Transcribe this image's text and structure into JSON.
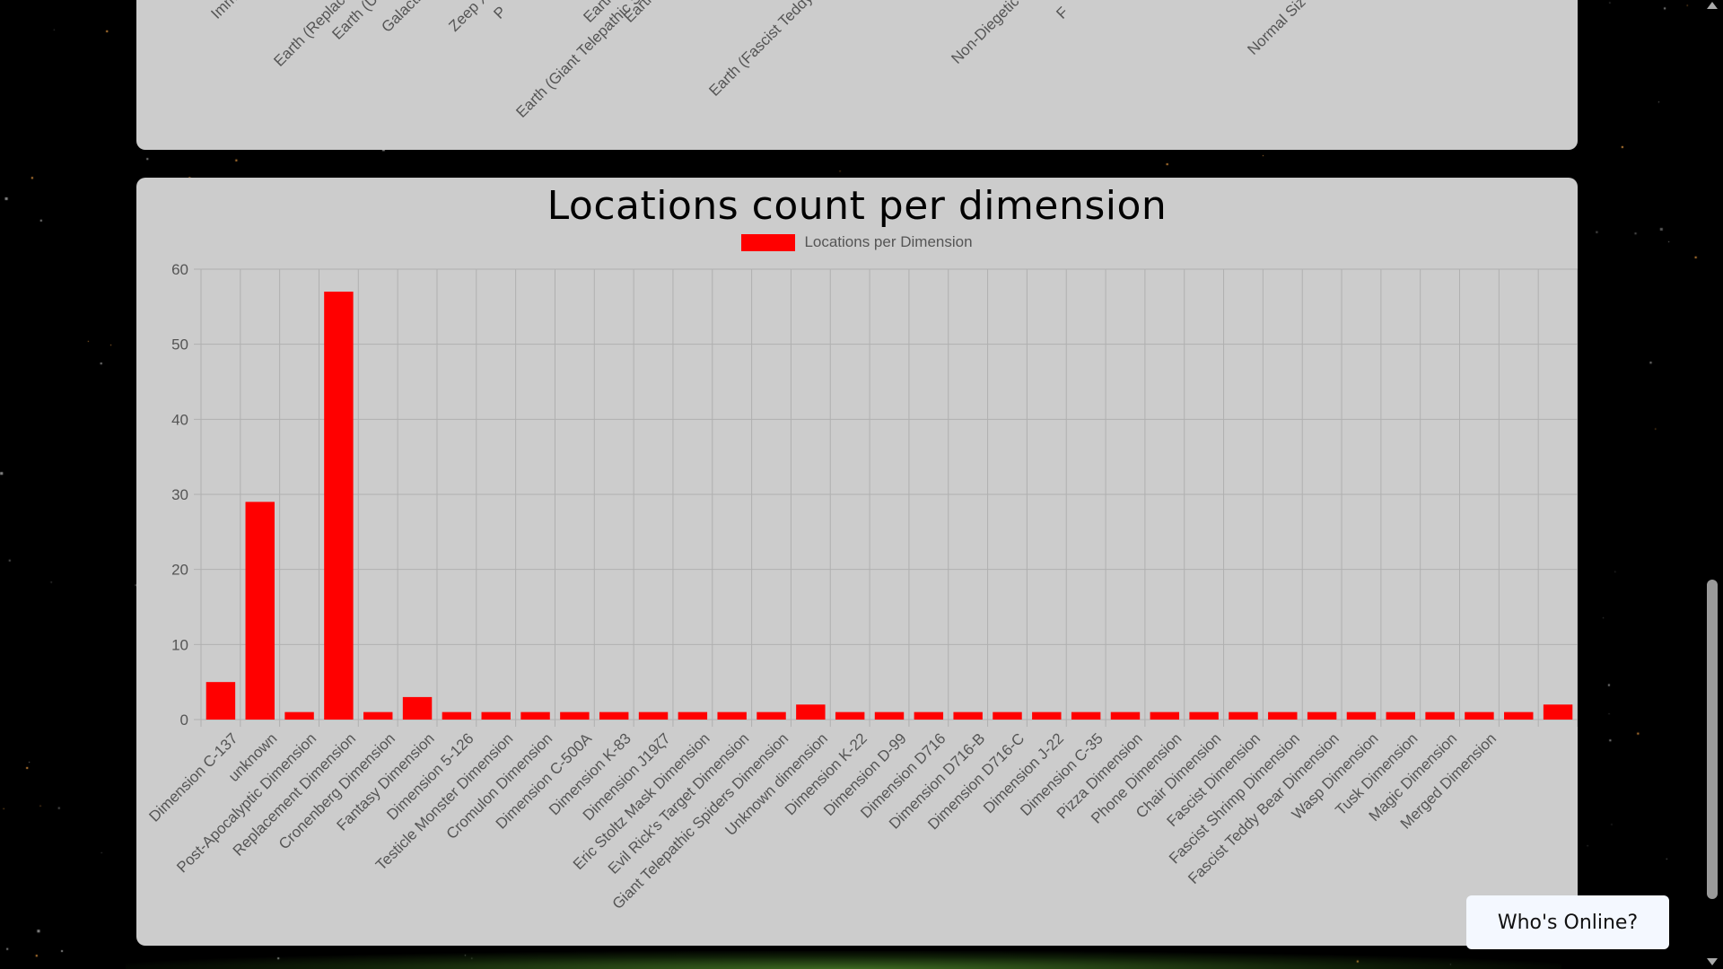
{
  "page": {
    "background_color": "#000000",
    "panel_color": "#cccccc",
    "whos_online_label": "Who's Online?"
  },
  "top_panel": {
    "partial_labels": [
      "Immor",
      "Earth (Replace",
      "Earth (Unk",
      "Galactic F",
      "Earth (Giant Telepathic Sp",
      "Zeep Xan",
      "P",
      "Earth (",
      "Earth (",
      "Earth (Fascist Teddy",
      "Non-Diegetic A",
      "F",
      "Normal Siz"
    ]
  },
  "chart_data": {
    "type": "bar",
    "title": "Locations count per dimension",
    "series": [
      {
        "name": "Locations per Dimension",
        "color": "#ff0000",
        "values": [
          5,
          29,
          1,
          57,
          1,
          3,
          1,
          1,
          1,
          1,
          1,
          1,
          1,
          1,
          1,
          2,
          1,
          1,
          1,
          1,
          1,
          1,
          1,
          1,
          1,
          1,
          1,
          1,
          1,
          1,
          1,
          1,
          1,
          1,
          2
        ]
      }
    ],
    "categories": [
      "Dimension C-137",
      "unknown",
      "Post-Apocalyptic Dimension",
      "Replacement Dimension",
      "Cronenberg Dimension",
      "Fantasy Dimension",
      "Dimension 5-126",
      "Testicle Monster Dimension",
      "Cromulon Dimension",
      "Dimension C-500A",
      "Dimension K-83",
      "Dimension J19ζ7",
      "Eric Stoltz Mask Dimension",
      "Evil Rick's Target Dimension",
      "Giant Telepathic Spiders Dimension",
      "Unknown dimension",
      "Dimension K-22",
      "Dimension D-99",
      "Dimension D716",
      "Dimension D716-B",
      "Dimension D716-C",
      "Dimension J-22",
      "Dimension C-35",
      "Pizza Dimension",
      "Phone Dimension",
      "Chair Dimension",
      "Fascist Dimension",
      "Fascist Shrimp Dimension",
      "Fascist Teddy Bear Dimension",
      "Wasp Dimension",
      "Tusk Dimension",
      "Magic Dimension",
      "Merged Dimension",
      "",
      ""
    ],
    "ylim": [
      0,
      60
    ],
    "yticks": [
      0,
      10,
      20,
      30,
      40,
      50,
      60
    ],
    "grid": true,
    "legend": "top-center",
    "xlabel": "",
    "ylabel": ""
  }
}
